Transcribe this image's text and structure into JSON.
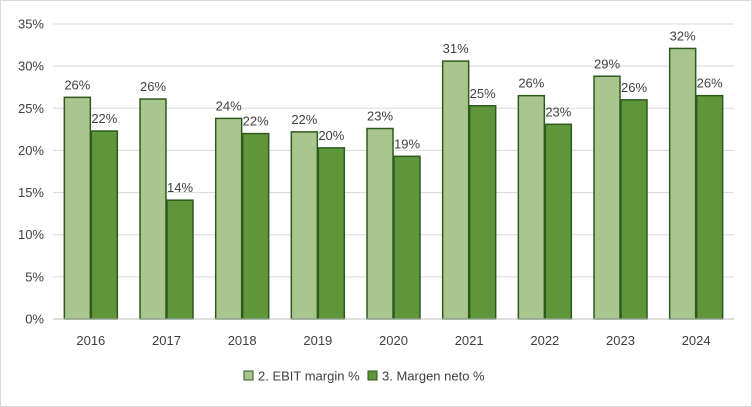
{
  "chart_data": {
    "type": "bar",
    "categories": [
      "2016",
      "2017",
      "2018",
      "2019",
      "2020",
      "2021",
      "2022",
      "2023",
      "2024"
    ],
    "series": [
      {
        "name": "2. EBIT margin %",
        "values": [
          26.3,
          26.1,
          23.8,
          22.2,
          22.6,
          30.6,
          26.5,
          28.8,
          32.1
        ],
        "labels": [
          "26%",
          "26%",
          "24%",
          "22%",
          "23%",
          "31%",
          "26%",
          "29%",
          "32%"
        ],
        "color": "#a9c68f",
        "stroke": "#2f5a1e"
      },
      {
        "name": "3. Margen neto %",
        "values": [
          22.3,
          14.1,
          22.0,
          20.3,
          19.3,
          25.3,
          23.1,
          26.0,
          26.5
        ],
        "labels": [
          "22%",
          "14%",
          "22%",
          "20%",
          "19%",
          "25%",
          "23%",
          "26%",
          "26%"
        ],
        "color": "#5f963a",
        "stroke": "#2f5a1e"
      }
    ],
    "ylim": [
      0,
      35
    ],
    "yticks": [
      "0%",
      "5%",
      "10%",
      "15%",
      "20%",
      "25%",
      "30%",
      "35%"
    ],
    "ytick_values": [
      0,
      5,
      10,
      15,
      20,
      25,
      30,
      35
    ],
    "grid": true,
    "legend_position": "bottom"
  }
}
